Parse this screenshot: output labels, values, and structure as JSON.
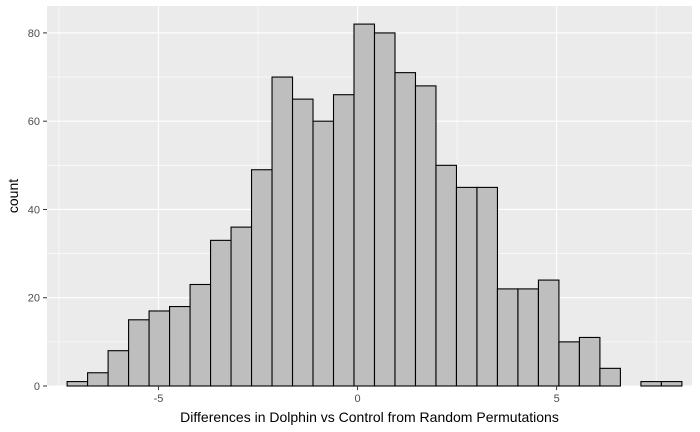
{
  "chart_data": {
    "type": "bar",
    "subtype": "histogram",
    "title": "",
    "xlabel": "Differences in Dolphin vs Control from Random Permutations",
    "ylabel": "count",
    "xlim": [
      -7.8,
      8.4
    ],
    "ylim": [
      0,
      86.1
    ],
    "x_ticks": [
      -5,
      0,
      5
    ],
    "x_tick_labels": [
      "-5",
      "0",
      "5"
    ],
    "y_ticks": [
      0,
      20,
      40,
      60,
      80
    ],
    "y_tick_labels": [
      "0",
      "20",
      "40",
      "60",
      "80"
    ],
    "bin_width": 0.5147,
    "bin_start": -7.295,
    "values": [
      1,
      3,
      8,
      15,
      17,
      18,
      23,
      33,
      36,
      49,
      70,
      65,
      60,
      66,
      82,
      80,
      71,
      68,
      50,
      45,
      45,
      22,
      22,
      24,
      10,
      11,
      4,
      0,
      1,
      1
    ],
    "grid": true,
    "legend": "none",
    "colors": {
      "panel_background": "#ebebeb",
      "major_grid": "#ffffff",
      "bar_fill": "#bebebe",
      "bar_outline": "#000000",
      "tick_text": "#4d4d4d",
      "title_text": "#000000"
    }
  }
}
